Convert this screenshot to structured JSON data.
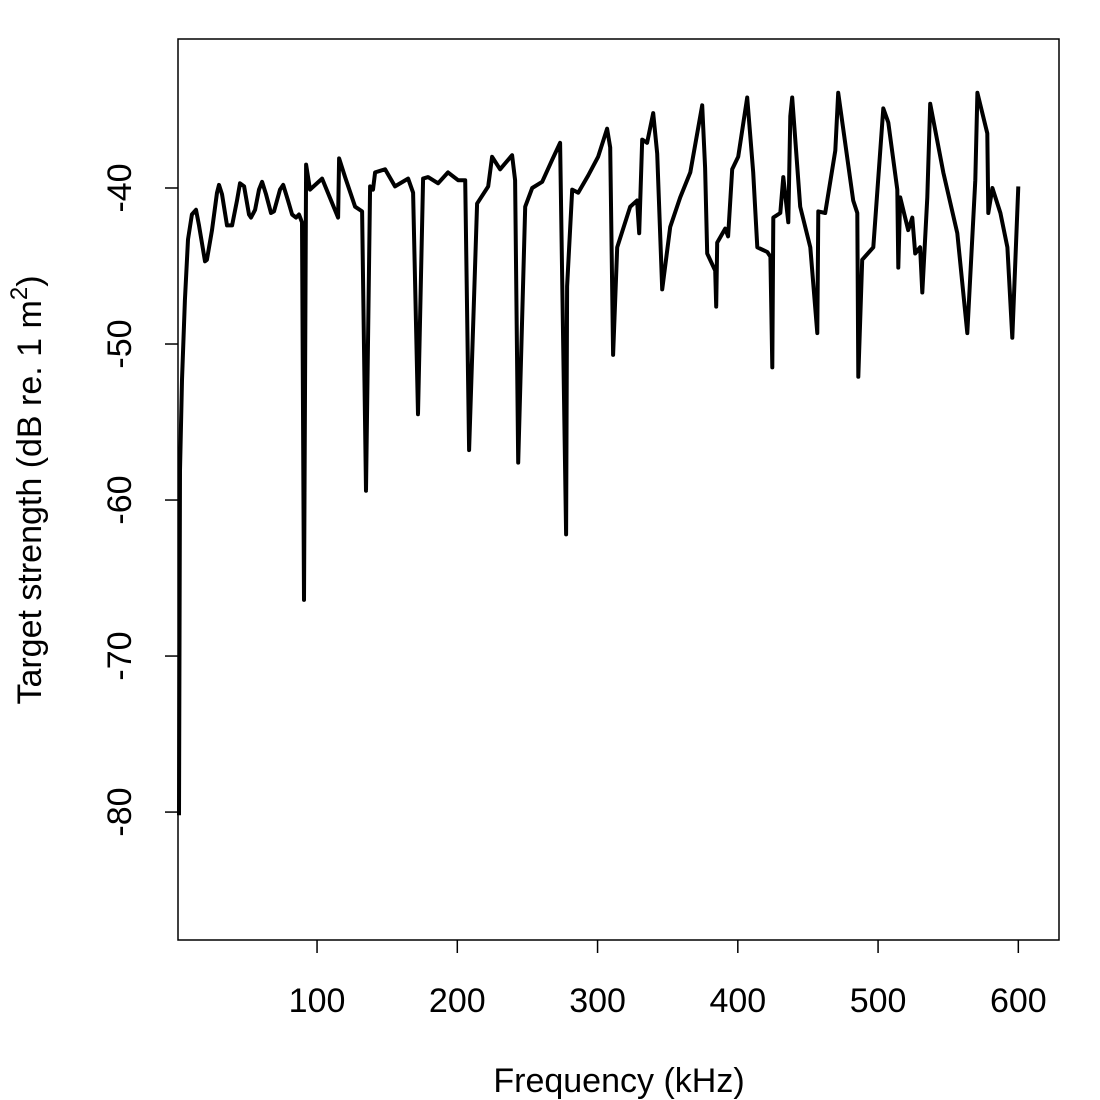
{
  "chart_data": {
    "type": "line",
    "title": "",
    "xlabel": "Frequency (kHz)",
    "ylabel": {
      "text": "Target strength (dB re. 1 m",
      "superscript": "2",
      "close": ")"
    },
    "xlim": [
      0.86,
      629
    ],
    "ylim": [
      -88.2,
      -30.45
    ],
    "xticks": [
      100,
      200,
      300,
      400,
      500,
      600
    ],
    "xtick_labels": [
      "100",
      "200",
      "300",
      "400",
      "500",
      "600"
    ],
    "yticks": [
      -80,
      -70,
      -60,
      -50,
      -40
    ],
    "ytick_labels": [
      "-80",
      "-70",
      "-60",
      "-50",
      "-40"
    ],
    "grid": false,
    "line_color": "#000000",
    "series": [
      {
        "x": [
          1.6,
          2.3,
          3.7,
          5.8,
          8.0,
          10.8,
          13.7,
          15.8,
          20.1,
          21.5,
          25.1,
          28.7,
          30.1,
          32.2,
          35.8,
          39.4,
          42.9,
          45.1,
          48.0,
          51.5,
          52.9,
          55.8,
          58.6,
          60.8,
          63.6,
          67.2,
          69.3,
          73.6,
          75.9,
          79.3,
          82.2,
          85.0,
          87.1,
          89.3,
          90.7,
          92.2,
          95.0,
          103.6,
          115.0,
          115.7,
          120.0,
          127.1,
          132.1,
          134.9,
          137.8,
          139.9,
          141.4,
          148.5,
          155.6,
          164.9,
          168.5,
          172.0,
          175.6,
          179.2,
          186.3,
          193.4,
          200.6,
          205.6,
          208.4,
          214.1,
          222.0,
          224.8,
          230.5,
          239.1,
          241.2,
          243.4,
          248.4,
          253.4,
          260.5,
          267.6,
          273.3,
          277.6,
          278.3,
          281.9,
          286.2,
          293.3,
          300.4,
          306.8,
          309.0,
          311.1,
          314.0,
          323.3,
          328.2,
          329.7,
          331.8,
          335.3,
          339.7,
          342.5,
          346.1,
          351.8,
          358.9,
          366.1,
          374.6,
          376.7,
          378.2,
          383.9,
          384.6,
          385.3,
          391.0,
          393.1,
          396.0,
          400.3,
          406.7,
          411.0,
          413.9,
          421.0,
          423.2,
          424.6,
          425.3,
          430.3,
          432.4,
          436.0,
          437.4,
          438.8,
          444.5,
          451.7,
          456.7,
          457.4,
          462.3,
          469.5,
          471.6,
          482.3,
          485.2,
          485.9,
          488.7,
          496.6,
          503.7,
          507.3,
          513.7,
          514.4,
          515.8,
          521.5,
          524.4,
          526.5,
          530.0,
          531.5,
          535.1,
          537.2,
          546.5,
          556.5,
          563.6,
          569.3,
          570.8,
          577.9,
          578.6,
          581.5,
          587.2,
          592.2,
          595.7,
          600.0
        ],
        "y": [
          -80.2,
          -58.1,
          -52.3,
          -47.2,
          -43.3,
          -41.7,
          -41.4,
          -42.4,
          -44.7,
          -44.6,
          -42.7,
          -40.3,
          -39.8,
          -40.4,
          -42.4,
          -42.4,
          -40.8,
          -39.7,
          -39.9,
          -41.7,
          -41.9,
          -41.4,
          -40.1,
          -39.6,
          -40.4,
          -41.6,
          -41.5,
          -40.1,
          -39.8,
          -40.8,
          -41.7,
          -41.9,
          -41.7,
          -42.2,
          -66.4,
          -38.5,
          -40.1,
          -39.4,
          -41.9,
          -38.1,
          -39.3,
          -41.2,
          -41.5,
          -59.4,
          -39.9,
          -40.1,
          -39.0,
          -38.8,
          -39.9,
          -39.4,
          -40.3,
          -54.5,
          -39.4,
          -39.3,
          -39.7,
          -39.0,
          -39.5,
          -39.5,
          -56.8,
          -41.0,
          -39.9,
          -38.0,
          -38.8,
          -37.9,
          -39.5,
          -57.6,
          -41.2,
          -40.0,
          -39.6,
          -38.2,
          -37.1,
          -62.2,
          -46.3,
          -40.1,
          -40.3,
          -39.2,
          -38.0,
          -36.2,
          -37.4,
          -50.7,
          -43.8,
          -41.2,
          -40.8,
          -42.9,
          -36.9,
          -37.1,
          -35.2,
          -37.8,
          -46.5,
          -42.5,
          -40.6,
          -39.0,
          -34.7,
          -38.7,
          -44.2,
          -45.3,
          -47.6,
          -43.5,
          -42.6,
          -43.1,
          -38.8,
          -38.0,
          -34.2,
          -39.0,
          -43.8,
          -44.1,
          -44.4,
          -51.5,
          -41.9,
          -41.6,
          -39.3,
          -42.2,
          -35.4,
          -34.2,
          -41.2,
          -43.8,
          -49.3,
          -41.5,
          -41.6,
          -37.6,
          -33.9,
          -40.8,
          -41.6,
          -52.1,
          -44.6,
          -43.8,
          -34.9,
          -35.8,
          -40.1,
          -45.1,
          -40.6,
          -42.7,
          -41.9,
          -44.2,
          -43.8,
          -46.7,
          -40.6,
          -34.6,
          -39.0,
          -42.9,
          -49.3,
          -39.5,
          -33.9,
          -36.5,
          -41.6,
          -40.0,
          -41.6,
          -43.8,
          -49.6,
          -39.9
        ]
      }
    ]
  }
}
